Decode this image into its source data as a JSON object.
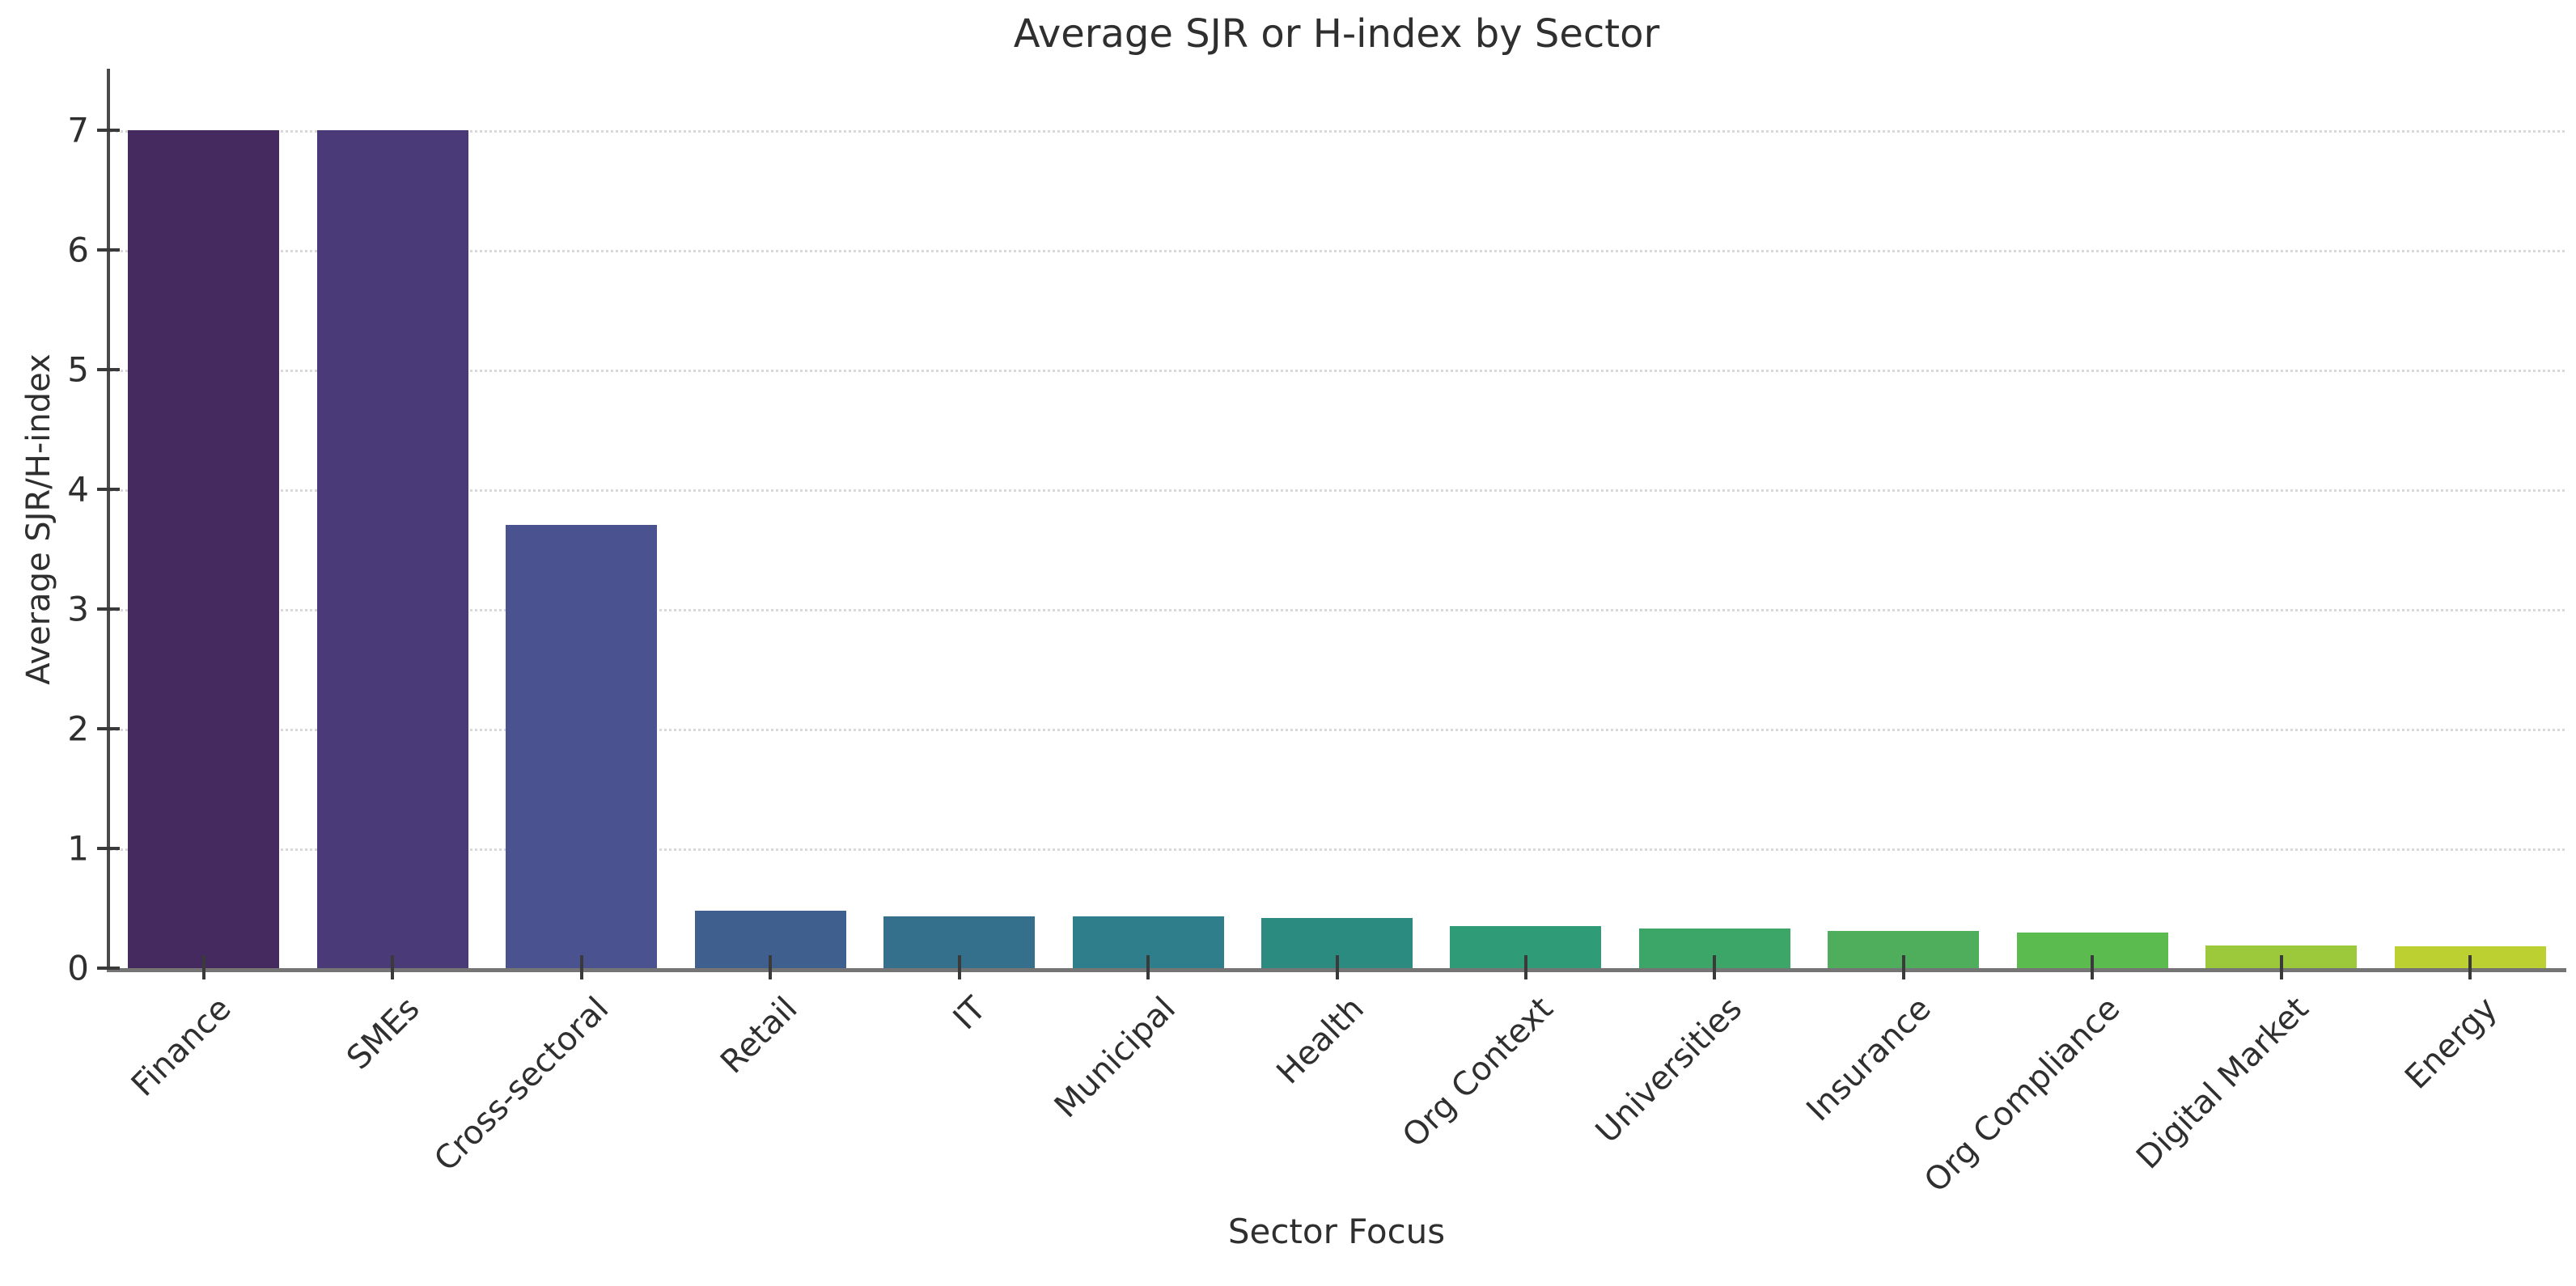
{
  "chart_data": {
    "type": "bar",
    "title": "Average SJR or H-index by Sector",
    "xlabel": "Sector Focus",
    "ylabel": "Average SJR/H-index",
    "categories": [
      "Finance",
      "SMEs",
      "Cross-sectoral",
      "Retail",
      "IT",
      "Municipal",
      "Health",
      "Org Context",
      "Universities",
      "Insurance",
      "Org Compliance",
      "Digital Market",
      "Energy"
    ],
    "values": [
      7.0,
      7.0,
      3.7,
      0.48,
      0.43,
      0.43,
      0.42,
      0.35,
      0.33,
      0.31,
      0.3,
      0.19,
      0.18
    ],
    "bar_colors": [
      "#452a5f",
      "#4a3b78",
      "#4a5390",
      "#3f608f",
      "#34708c",
      "#2f7e8b",
      "#2b8b80",
      "#2f9c77",
      "#3ca568",
      "#4fae5c",
      "#5bbb4e",
      "#9cc93b",
      "#bdd032"
    ],
    "yticks": [
      0,
      1,
      2,
      3,
      4,
      5,
      6,
      7
    ],
    "ylim": [
      0,
      7.5
    ],
    "grid": "horizontal-dotted",
    "grid_color": "#d9d9d9",
    "axis_color": "#4a4a4a",
    "text_color": "#2f2f2f",
    "legend": "none",
    "xtick_rotation_deg": 45
  }
}
